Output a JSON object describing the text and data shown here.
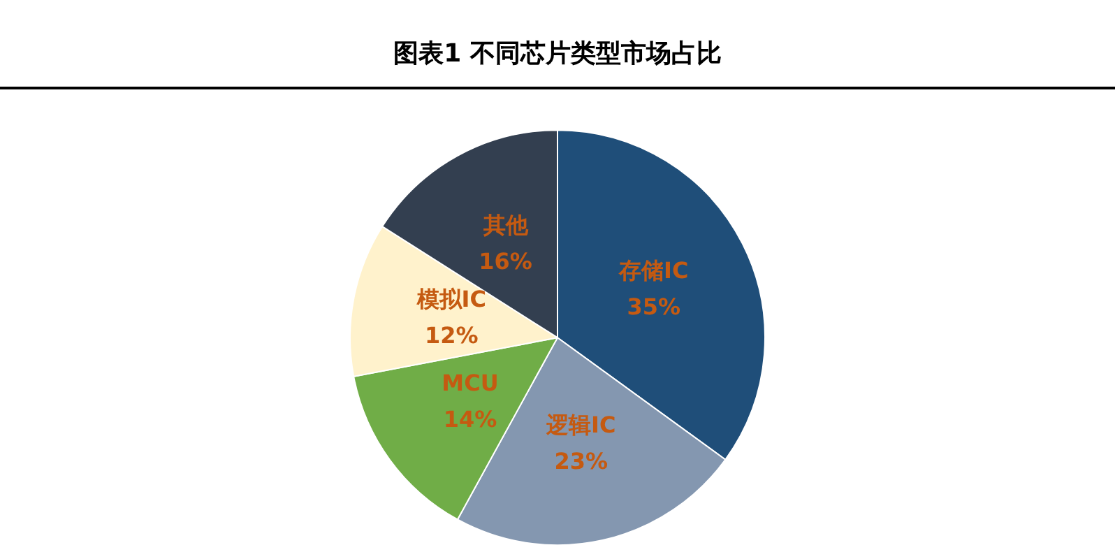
{
  "chart_data": {
    "type": "pie",
    "title": "图表1 不同芯片类型市场占比",
    "categories": [
      "存储IC",
      "逻辑IC",
      "MCU",
      "模拟IC",
      "其他"
    ],
    "values": [
      35,
      23,
      14,
      12,
      16
    ],
    "colors": [
      "#1f4e79",
      "#8497b0",
      "#70ad47",
      "#fff2cc",
      "#333f50"
    ],
    "value_labels": [
      "35%",
      "23%",
      "14%",
      "12%",
      "16%"
    ]
  }
}
